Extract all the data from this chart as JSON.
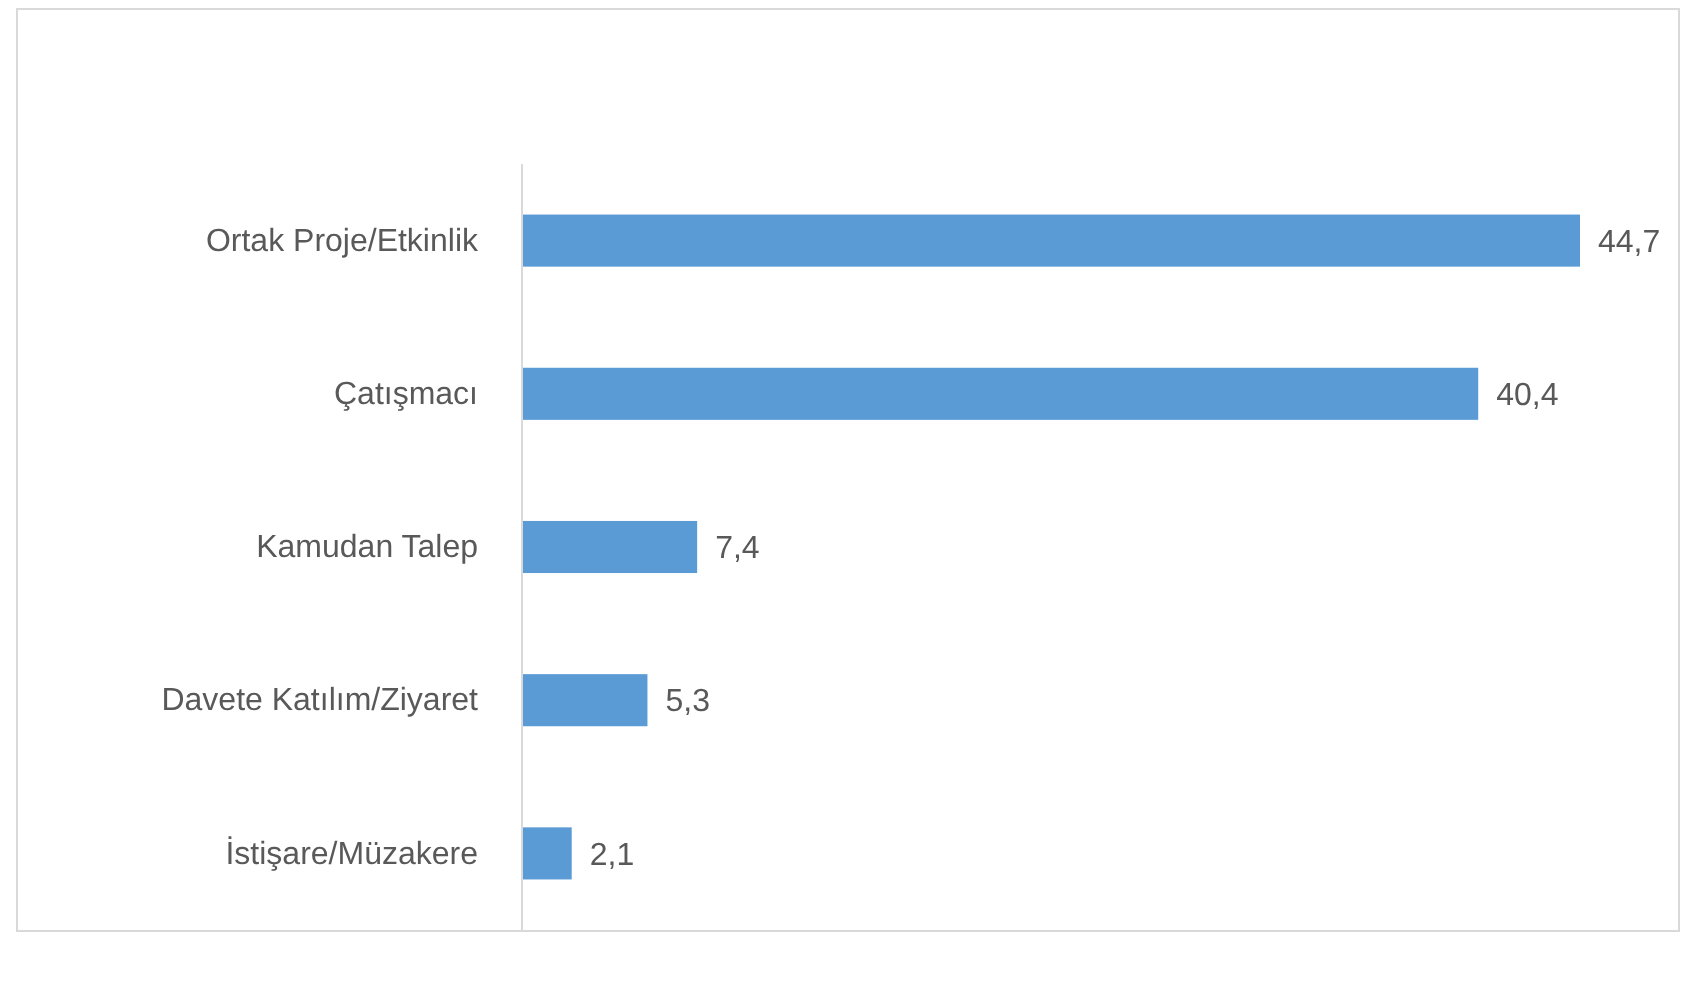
{
  "chart_data": {
    "type": "bar",
    "orientation": "horizontal",
    "categories": [
      "Ortak Proje/Etkinlik",
      "Çatışmacı",
      "Kamudan Talep",
      "Davete Katılım/Ziyaret",
      "İstişare/Müzakere"
    ],
    "values": [
      44.7,
      40.4,
      7.4,
      5.3,
      2.1
    ],
    "value_labels": [
      "44,7",
      "40,4",
      "7,4",
      "5,3",
      "2,1"
    ],
    "color": "#5b9bd5"
  }
}
